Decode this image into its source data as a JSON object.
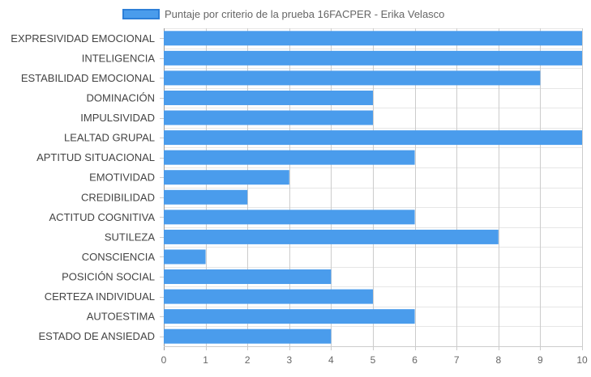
{
  "chart_data": {
    "type": "bar",
    "orientation": "horizontal",
    "categories": [
      "EXPRESIVIDAD EMOCIONAL",
      "INTELIGENCIA",
      "ESTABILIDAD EMOCIONAL",
      "DOMINACIÓN",
      "IMPULSIVIDAD",
      "LEALTAD GRUPAL",
      "APTITUD SITUACIONAL",
      "EMOTIVIDAD",
      "CREDIBILIDAD",
      "ACTITUD COGNITIVA",
      "SUTILEZA",
      "CONSCIENCIA",
      "POSICIÓN SOCIAL",
      "CERTEZA INDIVIDUAL",
      "AUTOESTIMA",
      "ESTADO DE ANSIEDAD"
    ],
    "series": [
      {
        "name": "Puntaje por criterio de la prueba 16FACPER - Erika Velasco",
        "values": [
          10,
          10,
          9,
          5,
          5,
          10,
          6,
          3,
          2,
          6,
          8,
          1,
          4,
          5,
          6,
          4
        ],
        "color": "#4a9cec"
      }
    ],
    "xlim": [
      0,
      10
    ],
    "xticks": [
      "0",
      "1",
      "2",
      "3",
      "4",
      "5",
      "6",
      "7",
      "8",
      "9",
      "10"
    ],
    "grid": true,
    "legend_position": "top"
  }
}
